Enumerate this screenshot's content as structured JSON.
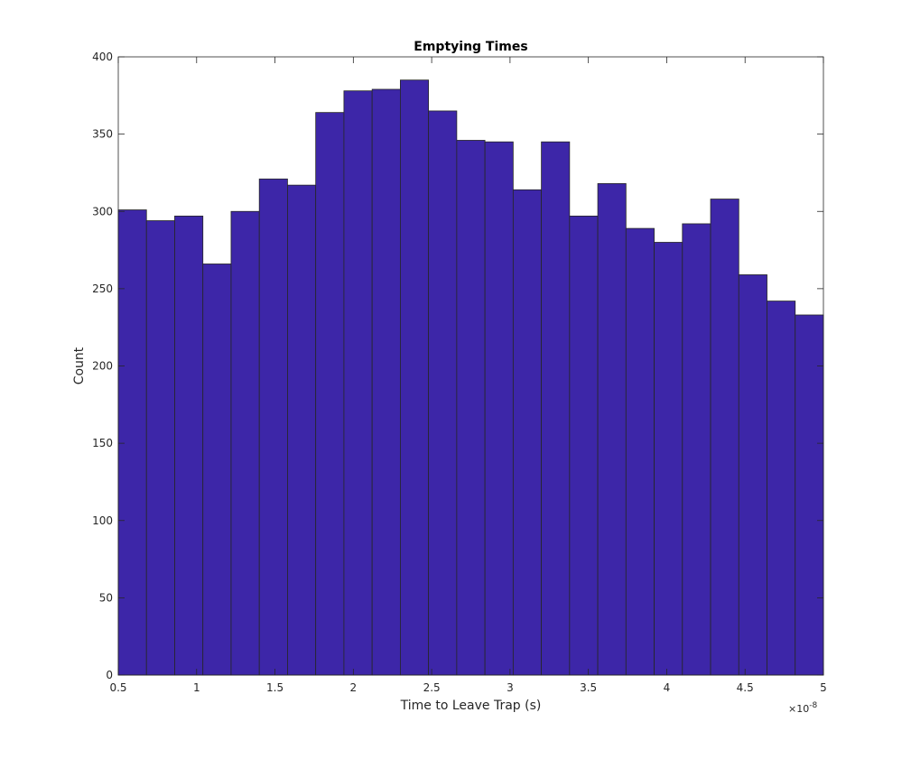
{
  "chart_data": {
    "type": "bar",
    "title": "Emptying Times",
    "xlabel": "Time to Leave Trap (s)",
    "ylabel": "Count",
    "x_exponent_label": "×10",
    "x_exponent_power": "-8",
    "xlim": [
      0.5,
      5
    ],
    "ylim": [
      0,
      400
    ],
    "x_ticks": [
      "0.5",
      "1",
      "1.5",
      "2",
      "2.5",
      "3",
      "3.5",
      "4",
      "4.5",
      "5"
    ],
    "x_tick_values": [
      0.5,
      1,
      1.5,
      2,
      2.5,
      3,
      3.5,
      4,
      4.5,
      5
    ],
    "y_ticks": [
      "0",
      "50",
      "100",
      "150",
      "200",
      "250",
      "300",
      "350",
      "400"
    ],
    "y_tick_values": [
      0,
      50,
      100,
      150,
      200,
      250,
      300,
      350,
      400
    ],
    "bin_edges": [
      0.5,
      0.68,
      0.86,
      1.04,
      1.22,
      1.4,
      1.58,
      1.76,
      1.94,
      2.12,
      2.3,
      2.48,
      2.66,
      2.84,
      3.02,
      3.2,
      3.38,
      3.56,
      3.74,
      3.92,
      4.1,
      4.28,
      4.46,
      4.64,
      4.82,
      5.0
    ],
    "values": [
      301,
      294,
      297,
      266,
      300,
      321,
      317,
      364,
      378,
      379,
      385,
      365,
      346,
      345,
      314,
      345,
      297,
      318,
      289,
      280,
      292,
      308,
      259,
      242,
      233
    ],
    "grid": false,
    "bar_color": "#3d26a8",
    "edge_color": "#262626"
  }
}
